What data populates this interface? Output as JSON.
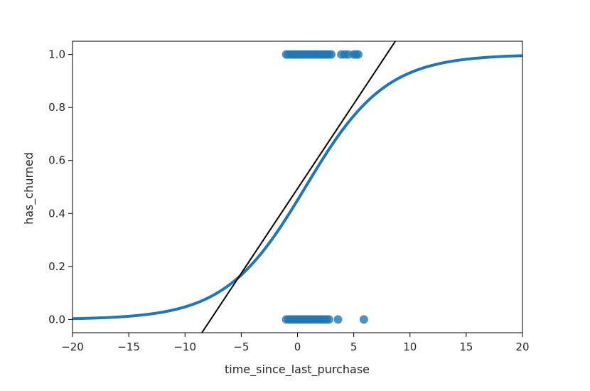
{
  "chart_data": {
    "type": "scatter",
    "xlabel": "time_since_last_purchase",
    "ylabel": "has_churned",
    "xlim": [
      -20,
      20
    ],
    "ylim": [
      -0.05,
      1.05
    ],
    "x_ticks": [
      -20,
      -15,
      -10,
      -5,
      0,
      5,
      10,
      15,
      20
    ],
    "y_ticks": [
      0.0,
      0.2,
      0.4,
      0.6,
      0.8,
      1.0
    ],
    "grid": false,
    "series": [
      {
        "kind": "scatter",
        "color": "#1f77b4",
        "points": [
          [
            -1.0,
            1
          ],
          [
            -0.8,
            1
          ],
          [
            -0.6,
            1
          ],
          [
            -0.4,
            1
          ],
          [
            -0.2,
            1
          ],
          [
            0.0,
            1
          ],
          [
            0.2,
            1
          ],
          [
            0.4,
            1
          ],
          [
            0.6,
            1
          ],
          [
            0.8,
            1
          ],
          [
            1.0,
            1
          ],
          [
            1.2,
            1
          ],
          [
            1.4,
            1
          ],
          [
            1.6,
            1
          ],
          [
            1.8,
            1
          ],
          [
            2.0,
            1
          ],
          [
            2.2,
            1
          ],
          [
            2.4,
            1
          ],
          [
            2.6,
            1
          ],
          [
            2.8,
            1
          ],
          [
            3.0,
            1
          ],
          [
            3.9,
            1
          ],
          [
            4.2,
            1
          ],
          [
            4.5,
            1
          ],
          [
            5.0,
            1
          ],
          [
            5.2,
            1
          ],
          [
            5.4,
            1
          ],
          [
            -1.0,
            0
          ],
          [
            -0.8,
            0
          ],
          [
            -0.6,
            0
          ],
          [
            -0.4,
            0
          ],
          [
            -0.2,
            0
          ],
          [
            0.0,
            0
          ],
          [
            0.2,
            0
          ],
          [
            0.4,
            0
          ],
          [
            0.6,
            0
          ],
          [
            0.8,
            0
          ],
          [
            1.0,
            0
          ],
          [
            1.2,
            0
          ],
          [
            1.4,
            0
          ],
          [
            1.6,
            0
          ],
          [
            1.8,
            0
          ],
          [
            2.0,
            0
          ],
          [
            2.2,
            0
          ],
          [
            2.4,
            0
          ],
          [
            2.6,
            0
          ],
          [
            2.8,
            0
          ],
          [
            3.6,
            0
          ],
          [
            5.9,
            0
          ]
        ]
      },
      {
        "kind": "logistic_curve",
        "color": "#1f77b4",
        "intercept": -0.2,
        "slope": 0.28
      },
      {
        "kind": "line",
        "color": "#000000",
        "points": [
          [
            -8.5,
            -0.05
          ],
          [
            8.7,
            1.05
          ]
        ]
      }
    ]
  }
}
